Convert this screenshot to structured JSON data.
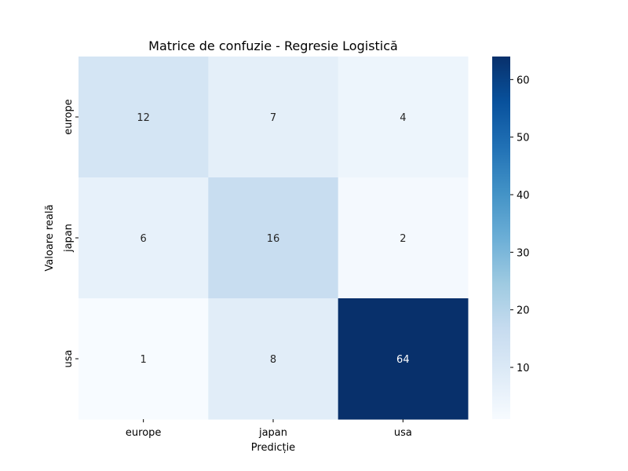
{
  "chart_data": {
    "type": "heatmap",
    "title": "Matrice de confuzie - Regresie Logistică",
    "xlabel": "Predicție",
    "ylabel": "Valoare reală",
    "x_categories": [
      "europe",
      "japan",
      "usa"
    ],
    "y_categories": [
      "europe",
      "japan",
      "usa"
    ],
    "matrix": [
      [
        12,
        7,
        4
      ],
      [
        6,
        16,
        2
      ],
      [
        1,
        8,
        64
      ]
    ],
    "colormap": "Blues",
    "colorbar": {
      "min": 1,
      "max": 64,
      "ticks": [
        10,
        20,
        30,
        40,
        50,
        60
      ]
    },
    "colors": {
      "low": "#f7fbff",
      "high": "#08306b",
      "annotation_dark": "#262626",
      "annotation_light": "#ffffff"
    }
  }
}
